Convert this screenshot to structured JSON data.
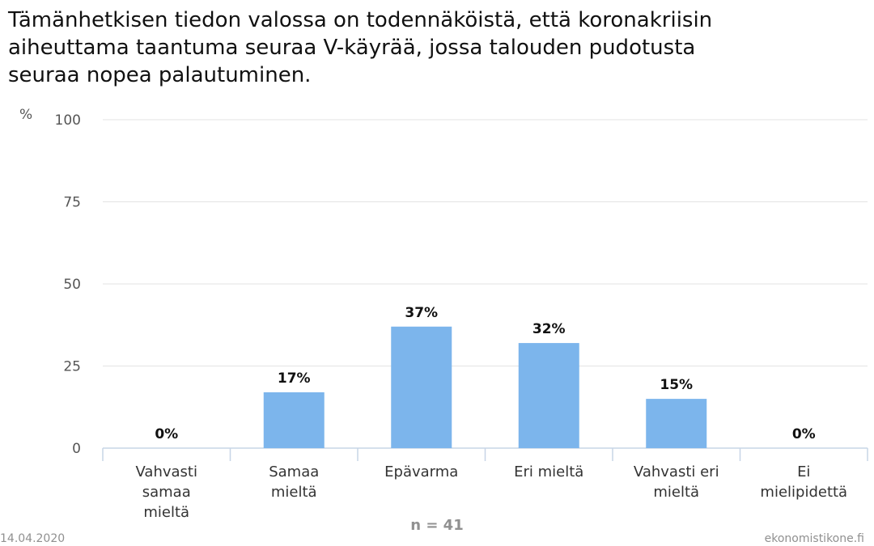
{
  "chart_data": {
    "type": "bar",
    "title_lines": [
      "Tämänhetkisen tiedon valossa on todennäköistä, että koronakriisin",
      "aiheuttama taantuma seuraa V-käyrää, jossa talouden pudotusta",
      "seuraa nopea palautuminen."
    ],
    "ylabel": "%",
    "ylim": [
      0,
      100
    ],
    "yticks": [
      0,
      25,
      50,
      75,
      100
    ],
    "grid": true,
    "categories": [
      [
        "Vahvasti",
        "samaa",
        "mieltä"
      ],
      [
        "Samaa",
        "mieltä"
      ],
      [
        "Epävarma"
      ],
      [
        "Eri mieltä"
      ],
      [
        "Vahvasti eri",
        "mieltä"
      ],
      [
        "Ei",
        "mielipidettä"
      ]
    ],
    "values": [
      0,
      17,
      37,
      32,
      15,
      0
    ],
    "data_labels": [
      "0%",
      "17%",
      "37%",
      "32%",
      "15%",
      "0%"
    ],
    "bar_color": "#7cb5ec"
  },
  "footer": {
    "date": "14.04.2020",
    "n_label": "n = 41",
    "source": "ekonomistikone.fi"
  }
}
